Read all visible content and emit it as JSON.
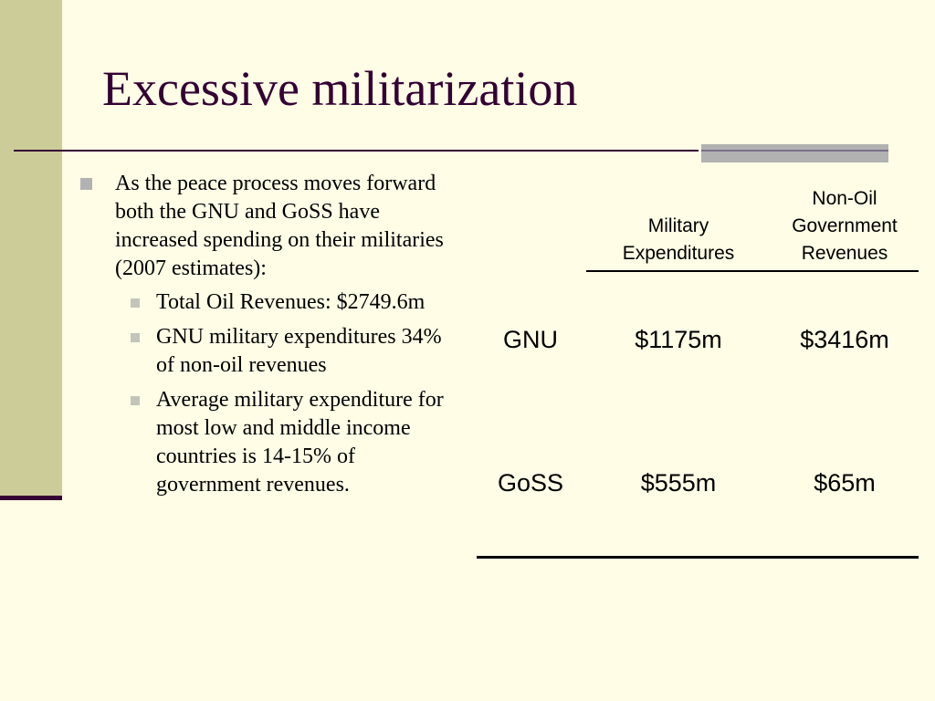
{
  "slide": {
    "title": "Excessive militarization",
    "colors": {
      "background": "#fffde6",
      "title": "#330033",
      "side_strip": "#cccc99",
      "accent": "#b2b2b2"
    }
  },
  "bullets": {
    "main": "As the peace process moves forward both the GNU and GoSS have increased spending on their militaries (2007 estimates):",
    "sub": [
      "Total Oil Revenues: $2749.6m",
      "GNU military expenditures 34% of non-oil revenues",
      "Average military expenditure for most low and middle income countries is 14-15% of government revenues."
    ]
  },
  "table": {
    "headers": {
      "military": "Military Expenditures",
      "revenue": "Non-Oil Government Revenues"
    },
    "rows": [
      {
        "label": "GNU",
        "military": "$1175m",
        "revenue": "$3416m"
      },
      {
        "label": "GoSS",
        "military": "$555m",
        "revenue": "$65m"
      }
    ]
  }
}
